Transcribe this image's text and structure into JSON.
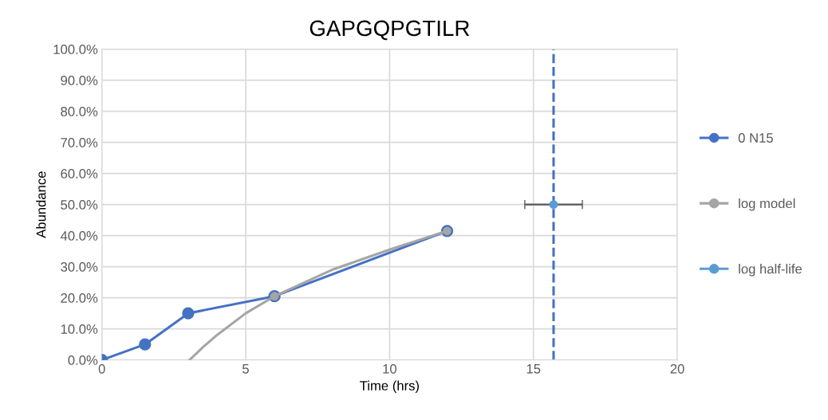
{
  "chart_data": {
    "type": "line",
    "title": "GAPGQPGTILR",
    "xlabel": "Time (hrs)",
    "ylabel": "Abundance",
    "series": [
      {
        "name": "0 N15",
        "color": "#4472c4",
        "x": [
          0,
          1.5,
          3,
          6,
          12
        ],
        "values": [
          0,
          5,
          15,
          20.5,
          41.5
        ],
        "marker": "circle"
      },
      {
        "name": "log model",
        "color": "#a5a5a5",
        "x": [
          3.05,
          3.5,
          4,
          5,
          6,
          8,
          10,
          12
        ],
        "values": [
          0,
          4,
          8,
          15,
          20.5,
          29,
          35.5,
          41.5
        ],
        "marker": "none"
      },
      {
        "color": "#a5a5a5",
        "type": "scatter",
        "x": [
          6,
          12
        ],
        "values": [
          20.5,
          41.5
        ],
        "marker": "circle"
      },
      {
        "name": "log half-life",
        "color": "#5b9bd5",
        "type": "scatter",
        "x": [
          15.7
        ],
        "values": [
          50
        ],
        "xerrors": [
          1
        ],
        "marker": "circle"
      }
    ],
    "ref_lines": [
      {
        "axis": "x",
        "value": 15.7,
        "color": "#4472c4",
        "line_style": "dashed"
      }
    ],
    "xlim": [
      0,
      20
    ],
    "xticks": [
      0,
      5,
      10,
      15,
      20
    ],
    "ylim": [
      0,
      100
    ],
    "yticks": [
      {
        "value": 0,
        "label": "0.0%"
      },
      {
        "value": 10,
        "label": "10.0%"
      },
      {
        "value": 20,
        "label": "20.0%"
      },
      {
        "value": 30,
        "label": "30.0%"
      },
      {
        "value": 40,
        "label": "40.0%"
      },
      {
        "value": 50,
        "label": "50.0%"
      },
      {
        "value": 60,
        "label": "60.0%"
      },
      {
        "value": 70,
        "label": "70.0%"
      },
      {
        "value": 80,
        "label": "80.0%"
      },
      {
        "value": 90,
        "label": "90.0%"
      },
      {
        "value": 100,
        "label": "100.0%"
      }
    ],
    "grid": true,
    "legend": "right"
  }
}
